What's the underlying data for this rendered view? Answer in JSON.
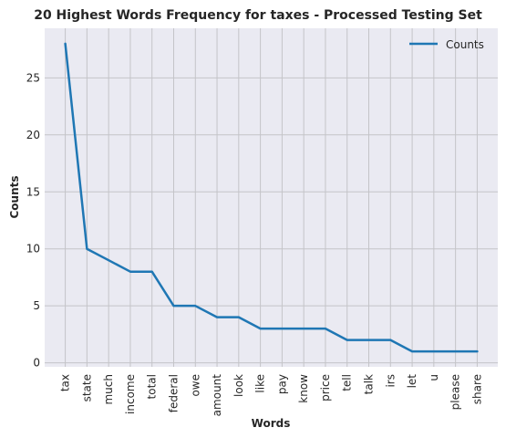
{
  "chart_data": {
    "type": "line",
    "title": "20 Highest Words Frequency for taxes - Processed Testing Set",
    "xlabel": "Words",
    "ylabel": "Counts",
    "categories": [
      "tax",
      "state",
      "much",
      "income",
      "total",
      "federal",
      "owe",
      "amount",
      "look",
      "like",
      "pay",
      "know",
      "price",
      "tell",
      "talk",
      "irs",
      "let",
      "u",
      "please",
      "share"
    ],
    "series": [
      {
        "name": "Counts",
        "values": [
          28,
          10,
          9,
          8,
          8,
          5,
          5,
          4,
          4,
          3,
          3,
          3,
          3,
          2,
          2,
          2,
          1,
          1,
          1,
          1
        ],
        "color": "#1f77b4"
      }
    ],
    "yticks": [
      0,
      5,
      10,
      15,
      20,
      25
    ],
    "ylim": [
      -0.35,
      29.35
    ],
    "grid": true,
    "legend": "top-right",
    "background": "#eaeaf2"
  }
}
